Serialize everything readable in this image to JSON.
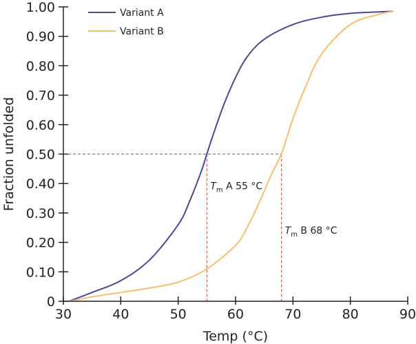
{
  "chart_data": {
    "type": "line",
    "xlabel": "Temp (°C)",
    "ylabel": "Fraction unfolded",
    "xlim": [
      30,
      90
    ],
    "ylim": [
      0,
      1
    ],
    "x_ticks": [
      "30",
      "40",
      "50",
      "60",
      "70",
      "80",
      "90"
    ],
    "y_ticks": [
      "0",
      "0.10",
      "0.20",
      "0.30",
      "0.40",
      "0.50",
      "0.60",
      "0.70",
      "0.80",
      "0.90",
      "1.00"
    ],
    "grid": false,
    "legend_position": "top-left",
    "series": [
      {
        "name": "Variant A",
        "color": "#4a4796",
        "x": [
          31,
          35,
          40,
          45,
          50,
          52,
          54,
          55,
          56,
          58,
          60,
          62,
          65,
          70,
          75,
          80,
          85,
          87.5
        ],
        "y": [
          0,
          0.03,
          0.07,
          0.14,
          0.26,
          0.34,
          0.44,
          0.5,
          0.56,
          0.67,
          0.76,
          0.83,
          0.89,
          0.94,
          0.965,
          0.978,
          0.983,
          0.985
        ]
      },
      {
        "name": "Variant B",
        "color": "#f7bf6c",
        "x": [
          31,
          35,
          40,
          45,
          50,
          55,
          60,
          62,
          64,
          66,
          67,
          68,
          69,
          70,
          72,
          75,
          80,
          85,
          87.5
        ],
        "y": [
          0,
          0.015,
          0.03,
          0.045,
          0.065,
          0.11,
          0.19,
          0.25,
          0.33,
          0.42,
          0.46,
          0.5,
          0.56,
          0.62,
          0.72,
          0.84,
          0.94,
          0.975,
          0.985
        ]
      }
    ],
    "reference_lines": {
      "color": "#d43a3a",
      "y": 0.5,
      "x": [
        55,
        68
      ]
    },
    "annotations": [
      {
        "italic": "T",
        "sub": "m",
        "text": " A 55 °C",
        "x": 55.6,
        "y": 0.38
      },
      {
        "italic": "T",
        "sub": "m",
        "text": " B 68 °C",
        "x": 68.6,
        "y": 0.23
      }
    ]
  }
}
